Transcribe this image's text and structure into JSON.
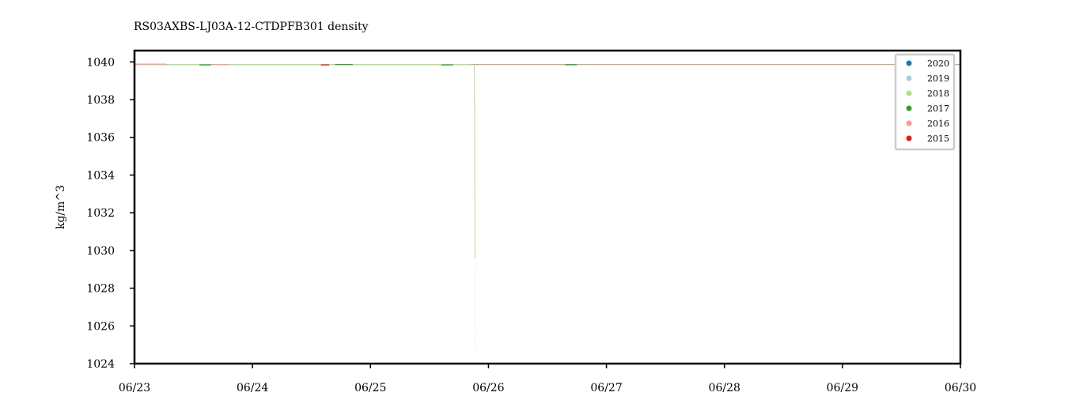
{
  "chart_data": {
    "type": "scatter",
    "title": "RS03AXBS-LJ03A-12-CTDPFB301 density",
    "ylabel": "kg/m^3",
    "xlabel": "",
    "x_tick_labels": [
      "06/23",
      "06/24",
      "06/25",
      "06/26",
      "06/27",
      "06/28",
      "06/29",
      "06/30"
    ],
    "y_ticks": [
      1024,
      1026,
      1028,
      1030,
      1032,
      1034,
      1036,
      1038,
      1040
    ],
    "xlim": [
      0,
      7
    ],
    "ylim": [
      1024,
      1040.6
    ],
    "grid": false,
    "legend_position": "top-right",
    "series": [
      {
        "name": "2020",
        "color": "#1f78b4",
        "segments": []
      },
      {
        "name": "2019",
        "color": "#a6cee3",
        "segments": []
      },
      {
        "name": "2018",
        "color": "#b2df8a",
        "segments": [
          [
            0.0,
            1039.86
          ],
          [
            2.85,
            1039.86
          ]
        ],
        "spike": {
          "x": 2.88,
          "values": [
            1039.86,
            1039.0,
            1033.2,
            1029.6,
            1024.8
          ]
        }
      },
      {
        "name": "2017",
        "color": "#33a02c",
        "segments": [
          [
            0.55,
            1039.84
          ],
          [
            0.65,
            1039.84
          ],
          [
            1.7,
            1039.86
          ],
          [
            1.85,
            1039.86
          ],
          [
            2.6,
            1039.84
          ],
          [
            2.7,
            1039.84
          ],
          [
            3.65,
            1039.85
          ],
          [
            3.75,
            1039.85
          ]
        ]
      },
      {
        "name": "2016",
        "color": "#fb9a99",
        "segments": [
          [
            0.0,
            1039.88
          ],
          [
            0.27,
            1039.88
          ],
          [
            0.65,
            1039.86
          ],
          [
            0.8,
            1039.86
          ]
        ]
      },
      {
        "name": "2015",
        "color": "#e31a1c",
        "segments": [
          [
            1.58,
            1039.84
          ],
          [
            1.65,
            1039.84
          ]
        ]
      }
    ],
    "baseline": {
      "color": "#c8ad7f",
      "y": 1039.86
    }
  }
}
